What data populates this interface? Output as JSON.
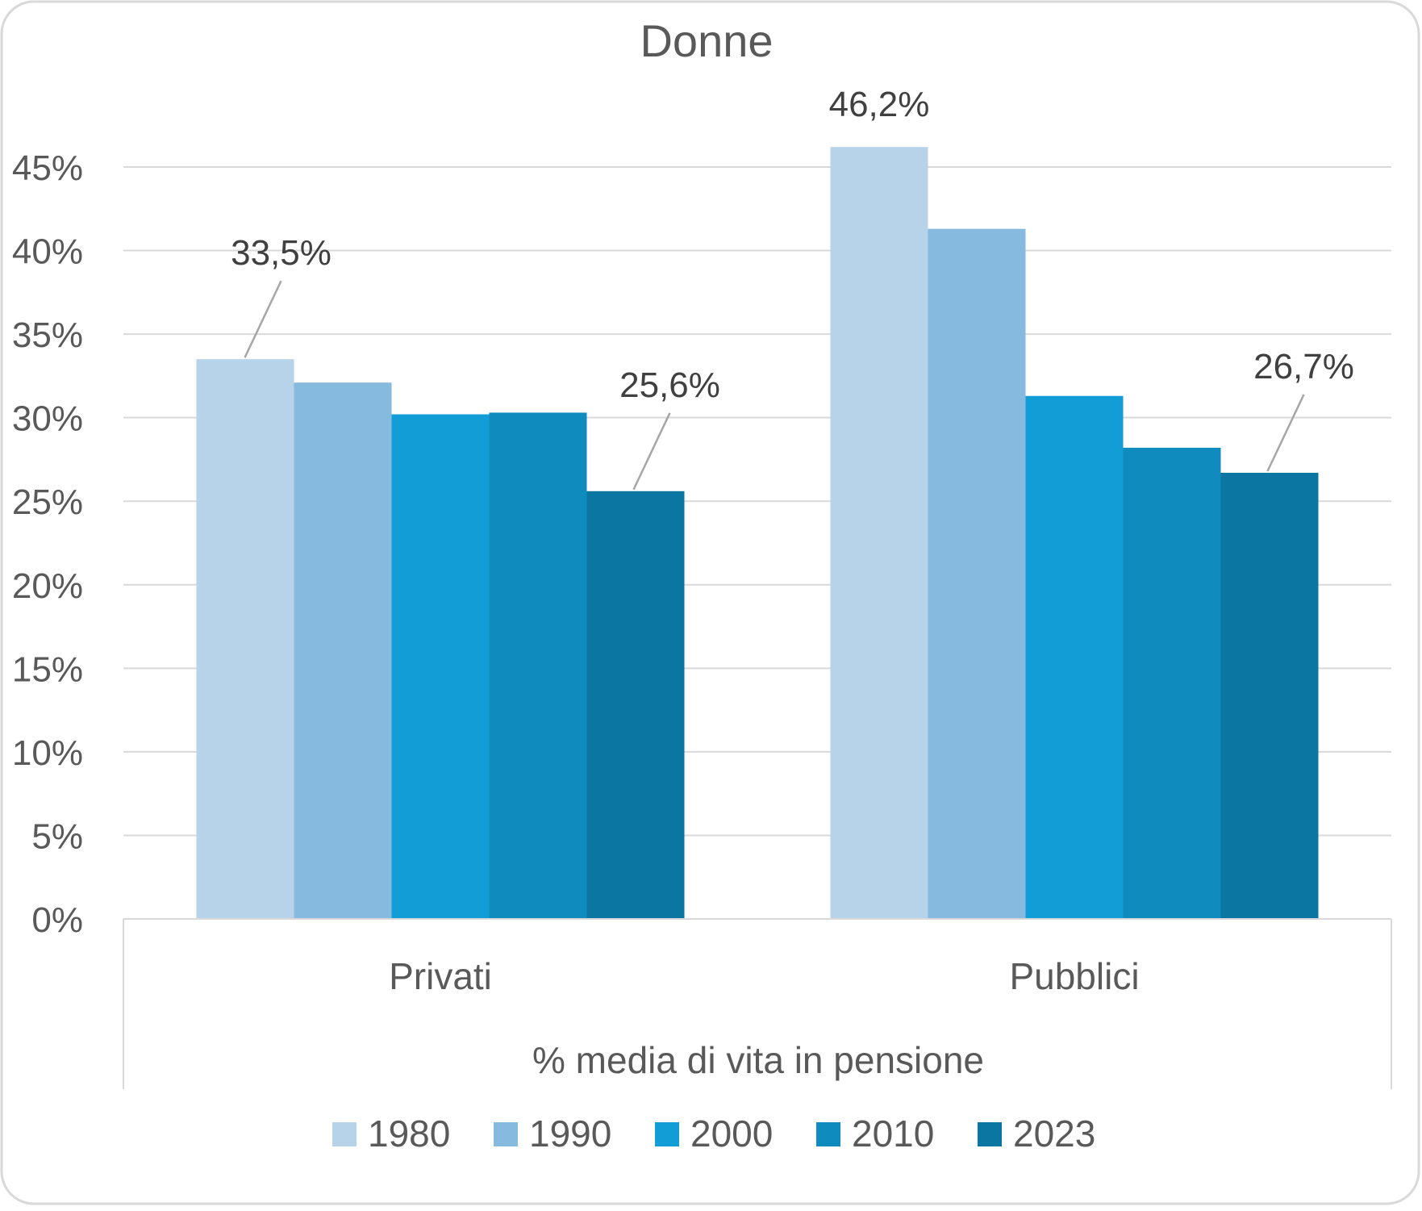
{
  "chart_data": {
    "type": "bar",
    "title": "Donne",
    "xlabel": "% media di vita in pensione",
    "ylabel": "",
    "categories": [
      "Privati",
      "Pubblici"
    ],
    "series": [
      {
        "name": "1980",
        "color": "#b7d3ea",
        "values": [
          33.5,
          46.2
        ]
      },
      {
        "name": "1990",
        "color": "#86badf",
        "values": [
          32.1,
          41.3
        ]
      },
      {
        "name": "2000",
        "color": "#129dd6",
        "values": [
          30.2,
          31.3
        ]
      },
      {
        "name": "2010",
        "color": "#0f8bbd",
        "values": [
          30.3,
          28.2
        ]
      },
      {
        "name": "2023",
        "color": "#0c76a3",
        "values": [
          25.6,
          26.7
        ]
      }
    ],
    "ylim": [
      0,
      45
    ],
    "yticks": [
      "0%",
      "5%",
      "10%",
      "15%",
      "20%",
      "25%",
      "30%",
      "35%",
      "40%",
      "45%"
    ],
    "data_labels": [
      {
        "series": 0,
        "category": 0,
        "text": "33,5%"
      },
      {
        "series": 4,
        "category": 0,
        "text": "25,6%"
      },
      {
        "series": 0,
        "category": 1,
        "text": "46,2%"
      },
      {
        "series": 4,
        "category": 1,
        "text": "26,7%"
      }
    ],
    "grid": true,
    "legend_position": "bottom"
  }
}
